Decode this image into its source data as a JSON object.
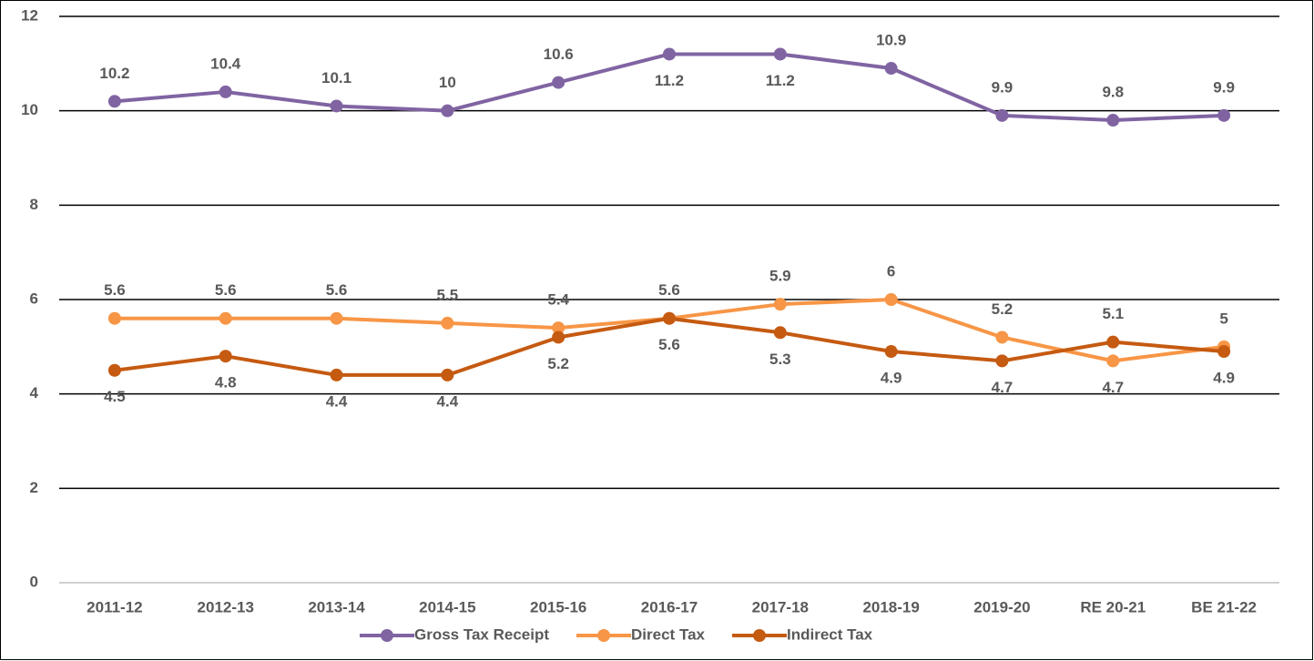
{
  "chart_data": {
    "type": "line",
    "categories": [
      "2011-12",
      "2012-13",
      "2013-14",
      "2014-15",
      "2015-16",
      "2016-17",
      "2017-18",
      "2018-19",
      "2019-20",
      "RE 20-21",
      "BE 21-22"
    ],
    "series": [
      {
        "name": "Gross Tax Receipt",
        "color": "#8064a2",
        "values": [
          10.2,
          10.4,
          10.1,
          10.0,
          10.6,
          11.2,
          11.2,
          10.9,
          9.9,
          9.8,
          9.9
        ]
      },
      {
        "name": "Direct Tax",
        "color": "#f79646",
        "values": [
          5.6,
          5.6,
          5.6,
          5.5,
          5.4,
          5.6,
          5.9,
          6.0,
          5.2,
          4.7,
          5.0
        ]
      },
      {
        "name": "Indirect Tax",
        "color": "#c55a11",
        "values": [
          4.5,
          4.8,
          4.4,
          4.4,
          5.2,
          5.6,
          5.3,
          4.9,
          4.7,
          5.1,
          4.9
        ]
      }
    ],
    "ylim": [
      0,
      12
    ],
    "yticks": [
      0,
      2,
      4,
      6,
      8,
      10,
      12
    ],
    "grid": true,
    "legend": "bottom"
  }
}
